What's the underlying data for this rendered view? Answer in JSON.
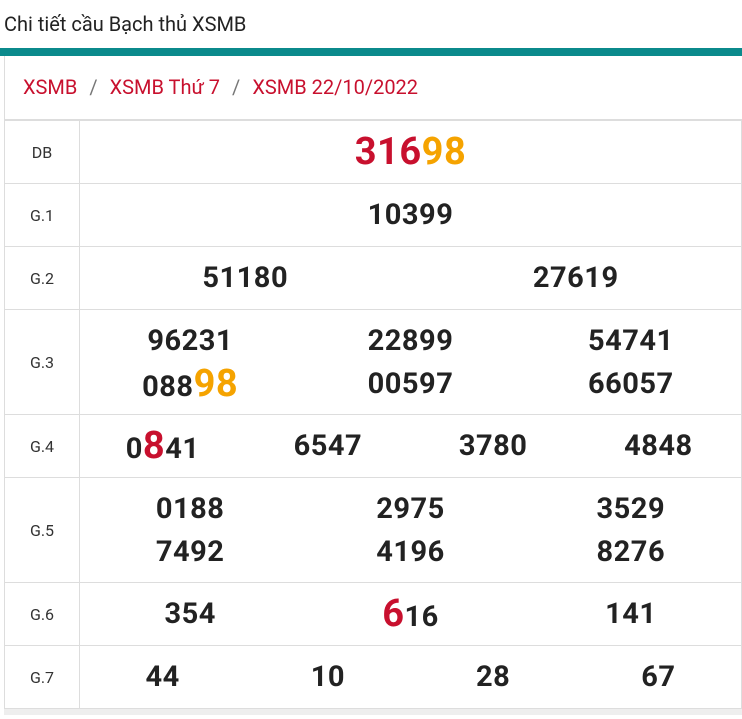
{
  "header": {
    "title": "Chi tiết cầu Bạch thủ XSMB"
  },
  "breadcrumb": {
    "separator": "/",
    "items": [
      "XSMB",
      "XSMB Thứ 7",
      "XSMB 22/10/2022"
    ]
  },
  "table": {
    "rows": [
      {
        "label": "DB",
        "lines": [
          [
            {
              "parts": [
                {
                  "text": "316",
                  "color": "#c8102e"
                },
                {
                  "text": "98",
                  "color": "#f5a300"
                }
              ]
            }
          ]
        ]
      },
      {
        "label": "G.1",
        "lines": [
          [
            "10399"
          ]
        ]
      },
      {
        "label": "G.2",
        "lines": [
          [
            "51180",
            "27619"
          ]
        ]
      },
      {
        "label": "G.3",
        "lines": [
          [
            "96231",
            "22899",
            "54741"
          ],
          [
            {
              "parts": [
                {
                  "text": "088"
                },
                {
                  "text": "98",
                  "color": "#f5a300"
                }
              ]
            },
            "00597",
            "66057"
          ]
        ]
      },
      {
        "label": "G.4",
        "lines": [
          [
            {
              "parts": [
                {
                  "text": "0"
                },
                {
                  "text": "8",
                  "color": "#c8102e"
                },
                {
                  "text": "41"
                }
              ]
            },
            "6547",
            "3780",
            "4848"
          ]
        ]
      },
      {
        "label": "G.5",
        "lines": [
          [
            "0188",
            "2975",
            "3529"
          ],
          [
            "7492",
            "4196",
            "8276"
          ]
        ]
      },
      {
        "label": "G.6",
        "lines": [
          [
            "354",
            {
              "parts": [
                {
                  "text": "6",
                  "color": "#c8102e"
                },
                {
                  "text": "16"
                }
              ]
            },
            "141"
          ]
        ]
      },
      {
        "label": "G.7",
        "lines": [
          [
            "44",
            "10",
            "28",
            "67"
          ]
        ]
      }
    ]
  }
}
